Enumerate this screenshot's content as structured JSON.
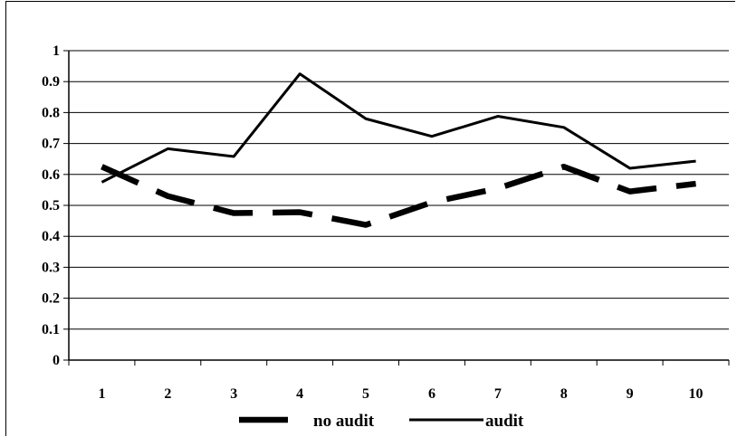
{
  "chart_data": {
    "type": "line",
    "title": "",
    "xlabel": "",
    "ylabel": "",
    "x": [
      "1",
      "2",
      "3",
      "4",
      "5",
      "6",
      "7",
      "8",
      "9",
      "10"
    ],
    "ylim": [
      0,
      1
    ],
    "yticks": [
      "0",
      "0.1",
      "0.2",
      "0.3",
      "0.4",
      "0.5",
      "0.6",
      "0.7",
      "0.8",
      "0.9",
      "1"
    ],
    "grid": true,
    "legend_position": "bottom",
    "series": [
      {
        "name": "no audit",
        "style": "dashed",
        "color": "#000000",
        "values": [
          0.625,
          0.53,
          0.475,
          0.478,
          0.437,
          0.51,
          0.555,
          0.625,
          0.545,
          0.57
        ]
      },
      {
        "name": "audit",
        "style": "solid",
        "color": "#000000",
        "values": [
          0.575,
          0.683,
          0.658,
          0.925,
          0.78,
          0.723,
          0.788,
          0.752,
          0.62,
          0.643
        ]
      }
    ]
  }
}
